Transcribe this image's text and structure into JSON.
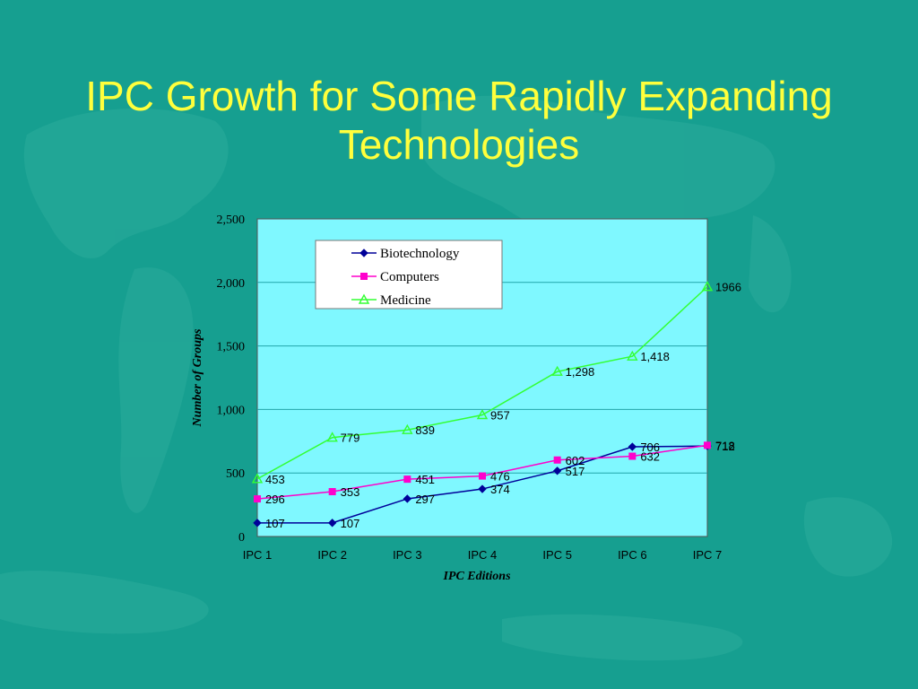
{
  "slide": {
    "title": "IPC Growth for Some Rapidly Expanding Technologies"
  },
  "colors": {
    "background": "#169f90",
    "title": "#ffff3c",
    "plot_area": "#7ff8ff",
    "gridline": "#22a5aa"
  },
  "chart_data": {
    "type": "line",
    "categories": [
      "IPC 1",
      "IPC 2",
      "IPC 3",
      "IPC 4",
      "IPC 5",
      "IPC 6",
      "IPC 7"
    ],
    "xlabel": "IPC Editions",
    "ylabel": "Number of Groups",
    "ylim": [
      0,
      2500
    ],
    "yticks": [
      0,
      500,
      1000,
      1500,
      2000,
      2500
    ],
    "ytick_labels": [
      "0",
      "500",
      "1,000",
      "1,500",
      "2,000",
      "2,500"
    ],
    "grid": true,
    "legend_position": "top-center",
    "series": [
      {
        "name": "Biotechnology",
        "color": "#000099",
        "marker": "diamond",
        "values": [
          107,
          107,
          297,
          374,
          517,
          706,
          712
        ],
        "labels": [
          "107",
          "107",
          "297",
          "374",
          "517",
          "706",
          "712"
        ]
      },
      {
        "name": "Computers",
        "color": "#ff00cc",
        "marker": "square",
        "values": [
          296,
          353,
          451,
          476,
          602,
          632,
          718
        ],
        "labels": [
          "296",
          "353",
          "451",
          "476",
          "602",
          "632",
          "718"
        ]
      },
      {
        "name": "Medicine",
        "color": "#33ff33",
        "marker": "triangle",
        "values": [
          453,
          779,
          839,
          957,
          1298,
          1418,
          1966
        ],
        "labels": [
          "453",
          "779",
          "839",
          "957",
          "1,298",
          "1,418",
          "1966"
        ]
      }
    ]
  }
}
